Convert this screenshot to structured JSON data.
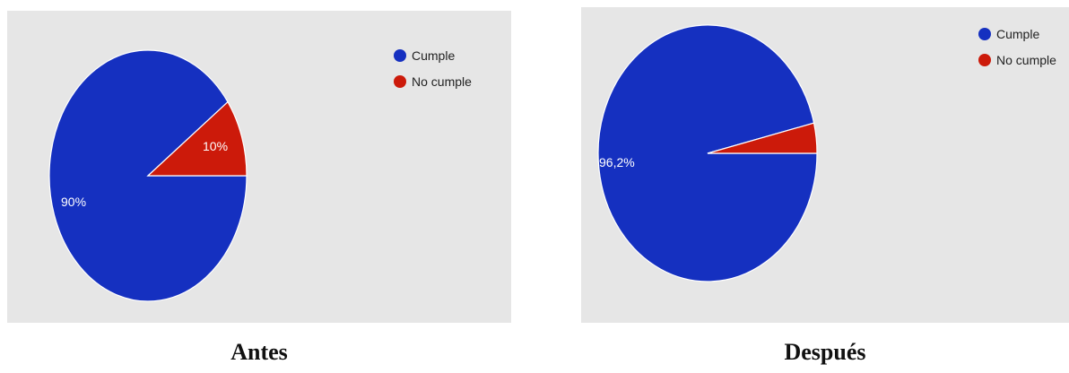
{
  "colors": {
    "cumple": "#1530c0",
    "no_cumple": "#cc1a0a",
    "panel_bg": "#e6e6e6"
  },
  "chart_data": [
    {
      "type": "pie",
      "caption": "Antes",
      "categories": [
        "Cumple",
        "No cumple"
      ],
      "values": [
        90,
        10
      ],
      "labels": [
        "90%",
        "10%"
      ],
      "legend": {
        "entries": [
          "Cumple",
          "No cumple"
        ],
        "position": "top-right"
      }
    },
    {
      "type": "pie",
      "caption": "Después",
      "categories": [
        "Cumple",
        "No cumple"
      ],
      "values": [
        96.2,
        3.8
      ],
      "labels": [
        "96,2%",
        ""
      ],
      "legend": {
        "entries": [
          "Cumple",
          "No cumple"
        ],
        "position": "top-right"
      }
    }
  ]
}
